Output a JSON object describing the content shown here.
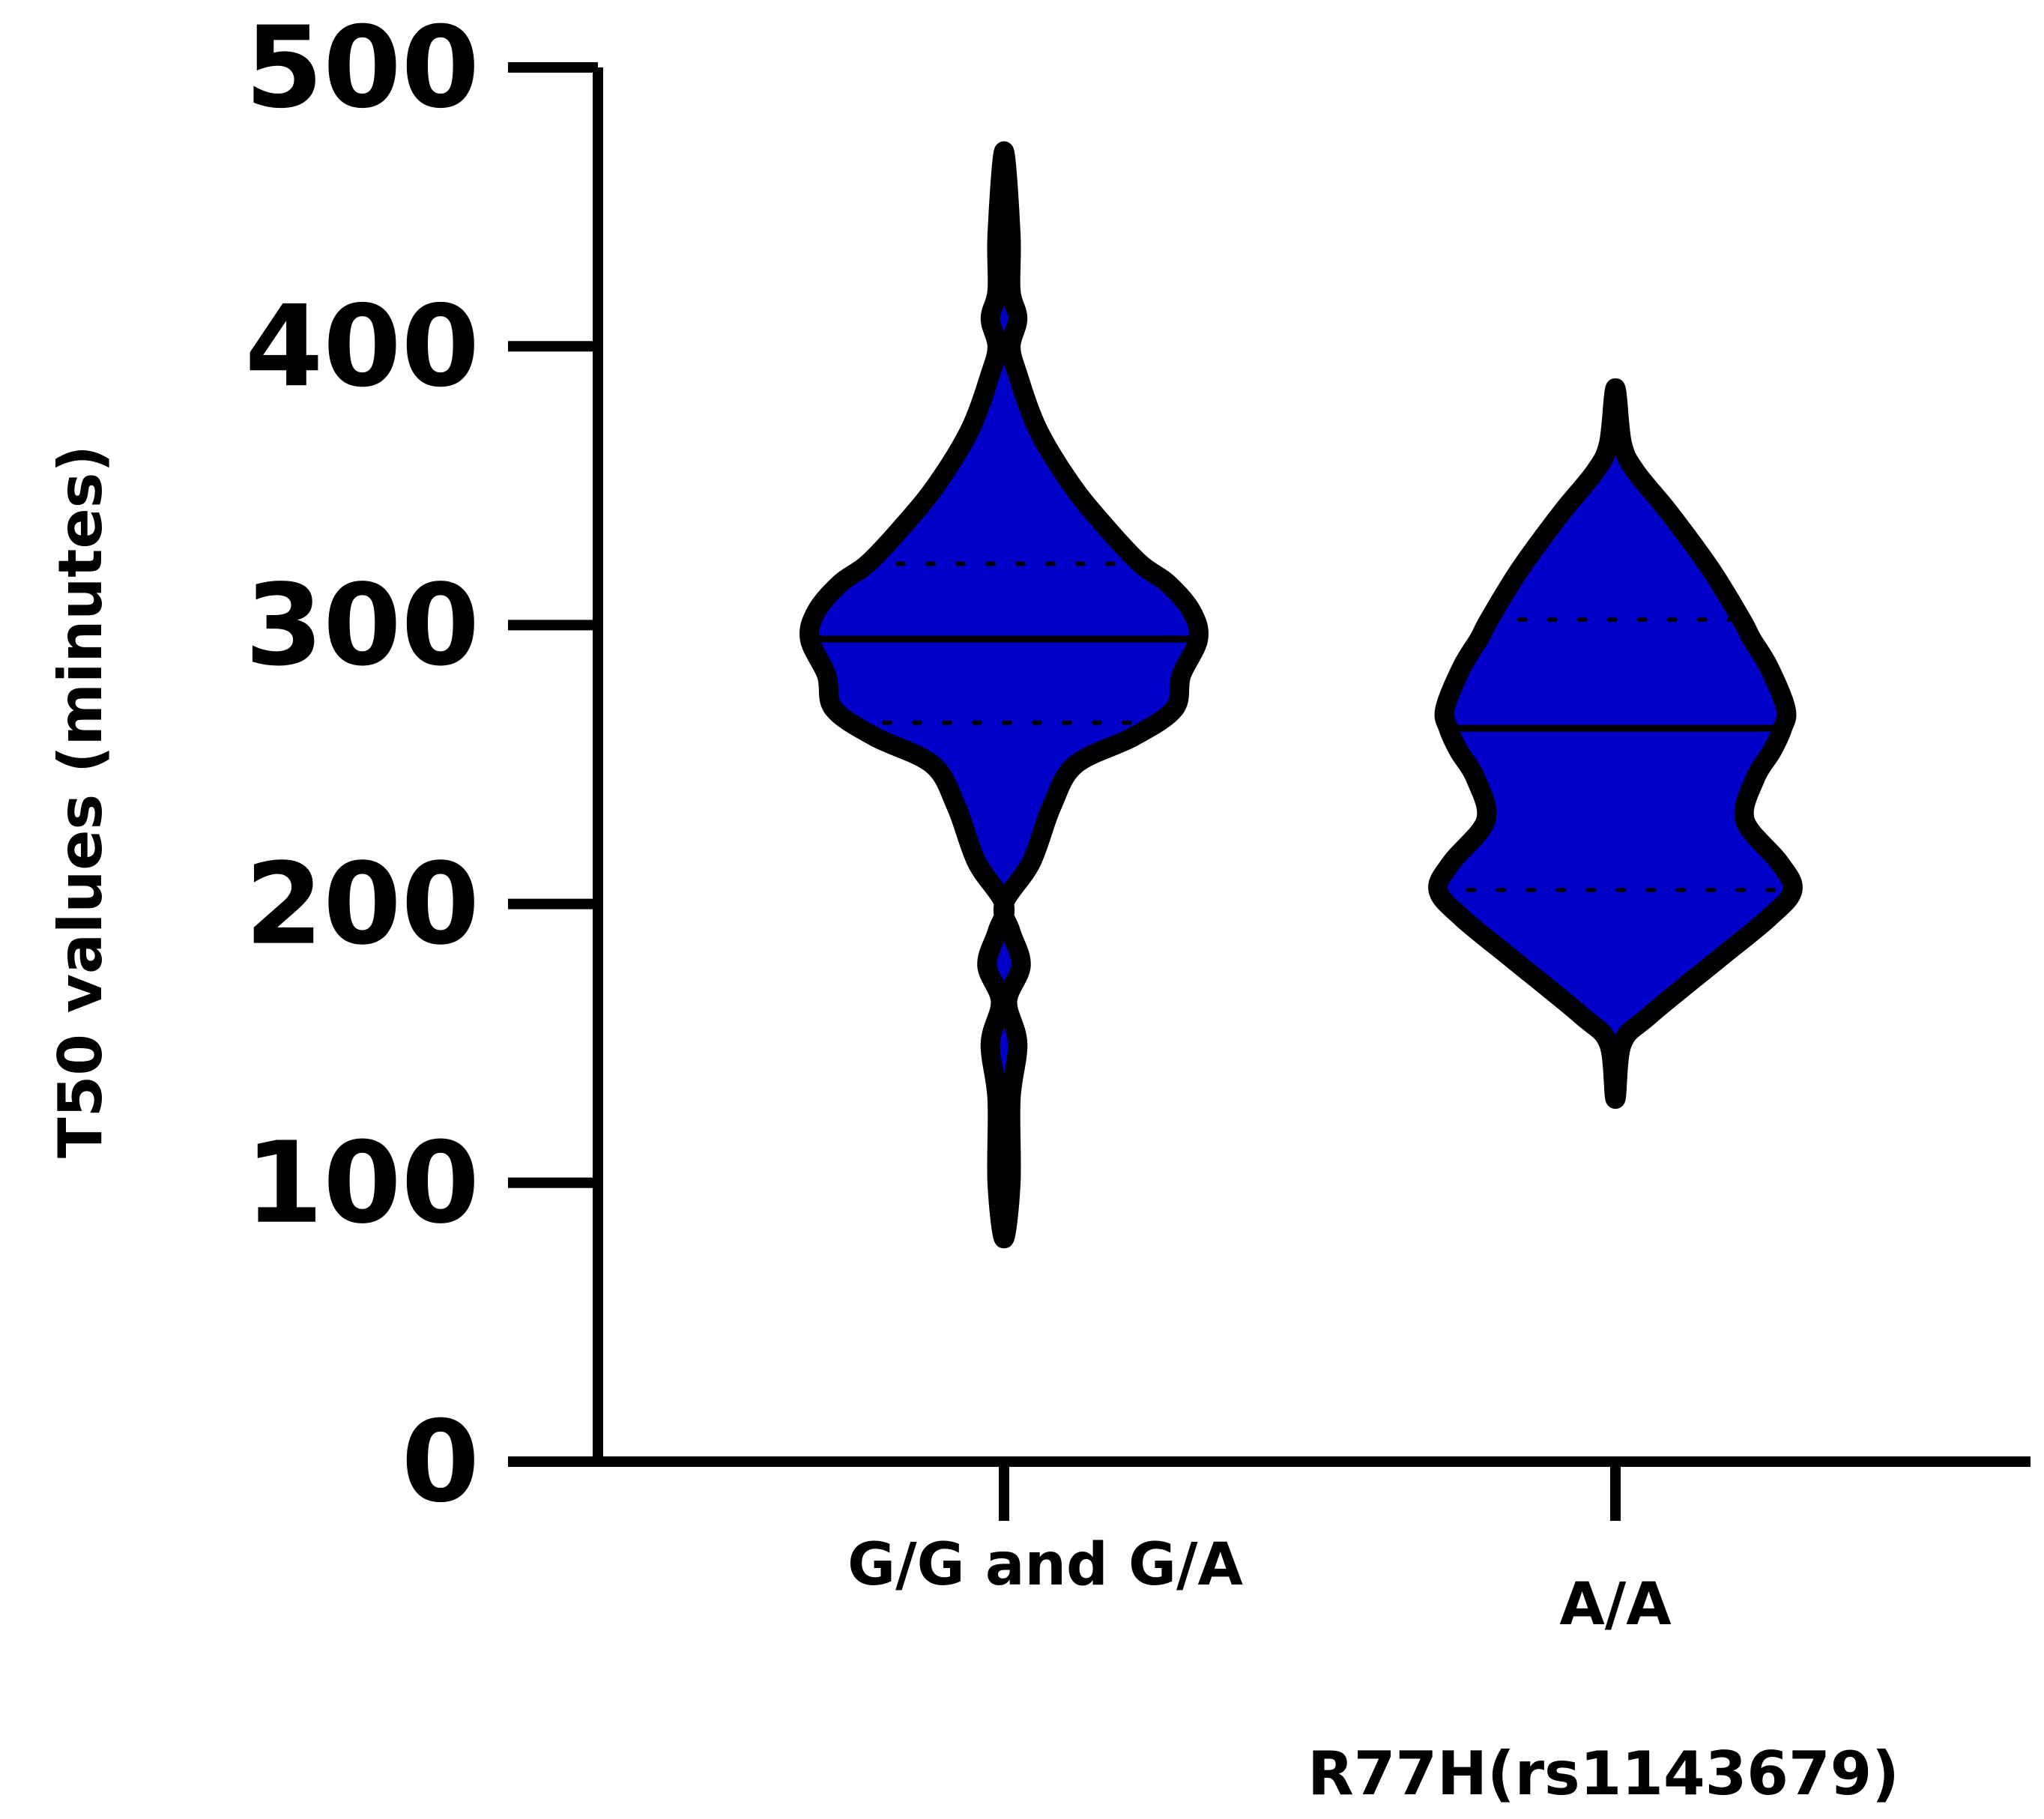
{
  "chart_data": {
    "type": "violin",
    "title": "",
    "xlabel": "R77H(rs1143679)",
    "ylabel": "T50 values (minutes)",
    "ylim": [
      0,
      500
    ],
    "yticks": [
      0,
      100,
      200,
      300,
      400,
      500
    ],
    "grid": false,
    "legend": "none",
    "fill_color": "#0000C8",
    "outline_color": "#000000",
    "categories": [
      "G/G and G/A",
      "A/A"
    ],
    "series": [
      {
        "category": "G/G and G/A",
        "min": 80,
        "max": 470,
        "median": 295,
        "q1": 265,
        "q3": 322,
        "density": [
          [
            80,
            0.0
          ],
          [
            100,
            0.02
          ],
          [
            130,
            0.02
          ],
          [
            150,
            0.04
          ],
          [
            165,
            0.01
          ],
          [
            178,
            0.05
          ],
          [
            190,
            0.02
          ],
          [
            200,
            0.0
          ],
          [
            215,
            0.08
          ],
          [
            235,
            0.14
          ],
          [
            250,
            0.21
          ],
          [
            260,
            0.38
          ],
          [
            270,
            0.5
          ],
          [
            282,
            0.52
          ],
          [
            295,
            0.57
          ],
          [
            305,
            0.55
          ],
          [
            315,
            0.48
          ],
          [
            322,
            0.4
          ],
          [
            335,
            0.3
          ],
          [
            350,
            0.2
          ],
          [
            370,
            0.1
          ],
          [
            390,
            0.04
          ],
          [
            400,
            0.02
          ],
          [
            410,
            0.04
          ],
          [
            420,
            0.02
          ],
          [
            440,
            0.02
          ],
          [
            470,
            0.0
          ]
        ]
      },
      {
        "category": "A/A",
        "min": 130,
        "max": 385,
        "median": 263,
        "q1": 205,
        "q3": 302,
        "density": [
          [
            130,
            0.0
          ],
          [
            150,
            0.02
          ],
          [
            160,
            0.1
          ],
          [
            180,
            0.3
          ],
          [
            195,
            0.45
          ],
          [
            205,
            0.52
          ],
          [
            215,
            0.48
          ],
          [
            230,
            0.38
          ],
          [
            245,
            0.41
          ],
          [
            255,
            0.46
          ],
          [
            263,
            0.49
          ],
          [
            270,
            0.5
          ],
          [
            285,
            0.45
          ],
          [
            295,
            0.4
          ],
          [
            302,
            0.37
          ],
          [
            320,
            0.28
          ],
          [
            340,
            0.16
          ],
          [
            355,
            0.06
          ],
          [
            365,
            0.02
          ],
          [
            385,
            0.0
          ]
        ]
      }
    ]
  }
}
